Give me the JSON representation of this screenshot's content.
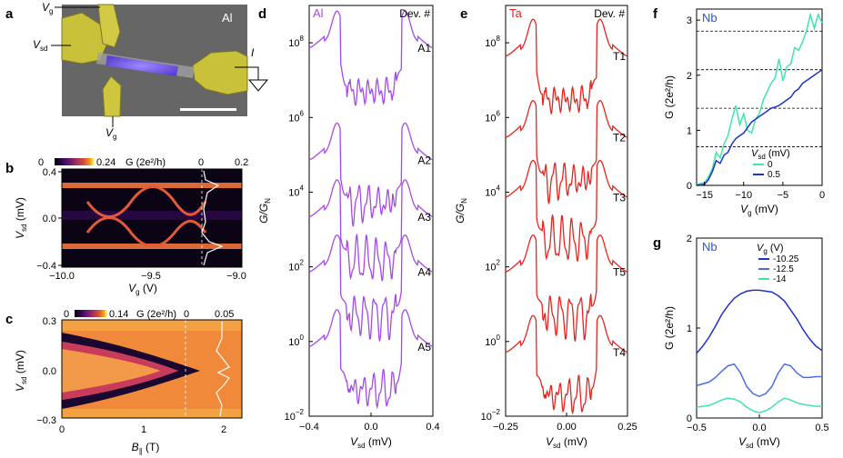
{
  "panel_letters": [
    "a",
    "b",
    "c",
    "d",
    "e",
    "f",
    "g"
  ],
  "panel_a": {
    "material": "Al",
    "labels": {
      "vg_top": "V",
      "vg_top_sub": "g",
      "vsd": "V",
      "vsd_sub": "sd",
      "vg_bottom": "V",
      "vg_bottom_sub": "g",
      "current": "I"
    },
    "colors": {
      "contact": "#c9c13a",
      "wire": "#8a6cf0",
      "background": "#6a6a6a"
    }
  },
  "panel_b": {
    "colorbar_min": "0",
    "colorbar_max": "0.24",
    "colorbar_unit": "G (2e²/h)",
    "linecut_min": "0",
    "linecut_max": "0.2",
    "ylabel": "V",
    "ylabel_sub": "sd",
    "ylabel_unit": " (mV)",
    "yticks": [
      "0.4",
      "0.0",
      "−0.4"
    ],
    "xlabel": "V",
    "xlabel_sub": "g",
    "xlabel_unit": " (V)",
    "xticks": [
      "−10.0",
      "−9.5",
      "−9.0"
    ]
  },
  "panel_c": {
    "colorbar_min": "0",
    "colorbar_max": "0.14",
    "colorbar_unit": "G (2e²/h)",
    "linecut_min": "0",
    "linecut_max": "0.05",
    "ylabel": "V",
    "ylabel_sub": "sd",
    "ylabel_unit": " (mV)",
    "yticks": [
      "0.3",
      "0.0",
      "−0.3"
    ],
    "xlabel": "B",
    "xlabel_sub": "∥",
    "xlabel_unit": " (T)",
    "xticks": [
      "0",
      "1",
      "2"
    ]
  },
  "chart_data": [
    {
      "panel": "d",
      "type": "line",
      "material": "Al",
      "legend_title": "Dev. #",
      "ylabel": "G/G",
      "ylabel_sub": "N",
      "yscale": "log",
      "xlabel": "V",
      "xlabel_sub": "sd",
      "xlabel_unit": " (mV)",
      "xlim": [
        -0.4,
        0.4
      ],
      "ylim": [
        0.01,
        1000000000
      ],
      "xticks": [
        "−0.4",
        "0.0",
        "0.4"
      ],
      "yticks": [
        "10",
        "10",
        "10",
        "10",
        "10",
        "10"
      ],
      "ytick_exponents": [
        "8",
        "6",
        "4",
        "2",
        "0",
        "−2"
      ],
      "series": [
        {
          "name": "A1",
          "offset": 100000000,
          "color": "#a64ae8"
        },
        {
          "name": "A2",
          "offset": 100000,
          "color": "#a64ae8"
        },
        {
          "name": "A3",
          "offset": 3000,
          "color": "#a64ae8"
        },
        {
          "name": "A4",
          "offset": 100,
          "color": "#a64ae8"
        },
        {
          "name": "A5",
          "offset": 1,
          "color": "#a64ae8"
        }
      ]
    },
    {
      "panel": "e",
      "type": "line",
      "material": "Ta",
      "legend_title": "Dev. #",
      "ylabel": "G/G",
      "ylabel_sub": "N",
      "yscale": "log",
      "xlabel": "V",
      "xlabel_sub": "sd",
      "xlabel_unit": " (mV)",
      "xlim": [
        -0.25,
        0.25
      ],
      "ylim": [
        0.01,
        1000000000
      ],
      "xticks": [
        "−0.25",
        "0.00",
        "0.25"
      ],
      "yticks": [
        "10",
        "10",
        "10",
        "10",
        "10",
        "10"
      ],
      "ytick_exponents": [
        "8",
        "6",
        "4",
        "2",
        "0",
        "−2"
      ],
      "series": [
        {
          "name": "T1",
          "offset": 60000000,
          "color": "#e8241f"
        },
        {
          "name": "T2",
          "offset": 400000,
          "color": "#e8241f"
        },
        {
          "name": "T3",
          "offset": 10000,
          "color": "#e8241f"
        },
        {
          "name": "T5",
          "offset": 100,
          "color": "#e8241f"
        },
        {
          "name": "T4",
          "offset": 0.7,
          "color": "#e8241f"
        }
      ]
    },
    {
      "panel": "f",
      "type": "line",
      "material": "Nb",
      "ylabel": "G (2e²/h)",
      "xlabel": "V",
      "xlabel_sub": "g",
      "xlabel_unit": " (mV)",
      "xlim": [
        -16,
        0
      ],
      "ylim": [
        0,
        3.2
      ],
      "xticks": [
        "−15",
        "−10",
        "−5",
        "0"
      ],
      "yticks": [
        "3",
        "2",
        "1",
        "0"
      ],
      "legend_title": "V",
      "legend_title_sub": "sd",
      "legend_title_unit": " (mV)",
      "dashed_levels": [
        0.7,
        1.4,
        2.1,
        2.8
      ],
      "series": [
        {
          "name": "0",
          "color": "#3fe6a8",
          "x": [
            -16,
            -15,
            -14.5,
            -14,
            -13.5,
            -13,
            -12.5,
            -12,
            -11.5,
            -11,
            -10.5,
            -10,
            -9.5,
            -9,
            -8.5,
            -8,
            -7.5,
            -7,
            -6.5,
            -6,
            -5.5,
            -5,
            -4.5,
            -4,
            -3.5,
            -3,
            -2.5,
            -2,
            -1.5,
            -1,
            -0.5,
            0
          ],
          "y": [
            0.02,
            0.05,
            0.15,
            0.3,
            0.6,
            0.5,
            0.75,
            0.9,
            1.2,
            1.45,
            1.1,
            1.3,
            1.0,
            0.95,
            1.2,
            1.3,
            1.55,
            1.7,
            1.85,
            1.95,
            2.3,
            1.9,
            2.15,
            2.2,
            2.5,
            2.45,
            2.6,
            2.8,
            3.1,
            2.85,
            3.1,
            2.95
          ]
        },
        {
          "name": "0.5",
          "color": "#1d32c8",
          "x": [
            -16,
            -15,
            -14.5,
            -14,
            -13.5,
            -13,
            -12.5,
            -12,
            -11.5,
            -11,
            -10.5,
            -10,
            -9.5,
            -9,
            -8.5,
            -8,
            -7.5,
            -7,
            -6.5,
            -6,
            -5.5,
            -5,
            -4.5,
            -4,
            -3.5,
            -3,
            -2.5,
            -2,
            -1.5,
            -1,
            -0.5,
            0
          ],
          "y": [
            0.0,
            0.02,
            0.1,
            0.25,
            0.45,
            0.4,
            0.55,
            0.6,
            0.75,
            0.85,
            0.9,
            0.95,
            1.05,
            1.15,
            1.2,
            1.25,
            1.3,
            1.35,
            1.4,
            1.42,
            1.45,
            1.5,
            1.55,
            1.6,
            1.7,
            1.75,
            1.85,
            1.9,
            1.95,
            2.0,
            2.05,
            2.1
          ]
        }
      ]
    },
    {
      "panel": "g",
      "type": "line",
      "material": "Nb",
      "ylabel": "G (2e²/h)",
      "xlabel": "V",
      "xlabel_sub": "sd",
      "xlabel_unit": " (mV)",
      "xlim": [
        -0.5,
        0.5
      ],
      "ylim": [
        0,
        2
      ],
      "xticks": [
        "−0.5",
        "0.0",
        "0.5"
      ],
      "yticks": [
        "2",
        "1",
        "0"
      ],
      "legend_title": "V",
      "legend_title_sub": "g",
      "legend_title_unit": " (V)",
      "series": [
        {
          "name": "-10.25",
          "color": "#1d32c8",
          "x": [
            -0.5,
            -0.45,
            -0.4,
            -0.35,
            -0.3,
            -0.25,
            -0.2,
            -0.15,
            -0.1,
            -0.05,
            0,
            0.05,
            0.1,
            0.15,
            0.2,
            0.25,
            0.3,
            0.35,
            0.4,
            0.45,
            0.5
          ],
          "y": [
            0.72,
            0.8,
            0.9,
            1.02,
            1.15,
            1.25,
            1.33,
            1.38,
            1.41,
            1.42,
            1.42,
            1.41,
            1.4,
            1.36,
            1.3,
            1.2,
            1.1,
            0.98,
            0.88,
            0.8,
            0.75
          ]
        },
        {
          "name": "-12.5",
          "color": "#4a6ee8",
          "x": [
            -0.5,
            -0.45,
            -0.4,
            -0.35,
            -0.3,
            -0.25,
            -0.2,
            -0.15,
            -0.1,
            -0.05,
            0,
            0.05,
            0.1,
            0.15,
            0.2,
            0.25,
            0.3,
            0.35,
            0.4,
            0.45,
            0.5
          ],
          "y": [
            0.36,
            0.38,
            0.4,
            0.45,
            0.52,
            0.58,
            0.6,
            0.5,
            0.35,
            0.27,
            0.24,
            0.27,
            0.35,
            0.5,
            0.6,
            0.58,
            0.5,
            0.45,
            0.45,
            0.46,
            0.46
          ]
        },
        {
          "name": "-14",
          "color": "#3fe6a8",
          "x": [
            -0.5,
            -0.45,
            -0.4,
            -0.35,
            -0.3,
            -0.25,
            -0.2,
            -0.15,
            -0.1,
            -0.05,
            0,
            0.05,
            0.1,
            0.15,
            0.2,
            0.25,
            0.3,
            0.35,
            0.4,
            0.45,
            0.5
          ],
          "y": [
            0.12,
            0.13,
            0.14,
            0.17,
            0.2,
            0.22,
            0.21,
            0.18,
            0.12,
            0.08,
            0.06,
            0.08,
            0.12,
            0.18,
            0.22,
            0.2,
            0.17,
            0.15,
            0.14,
            0.13,
            0.13
          ]
        }
      ]
    }
  ]
}
